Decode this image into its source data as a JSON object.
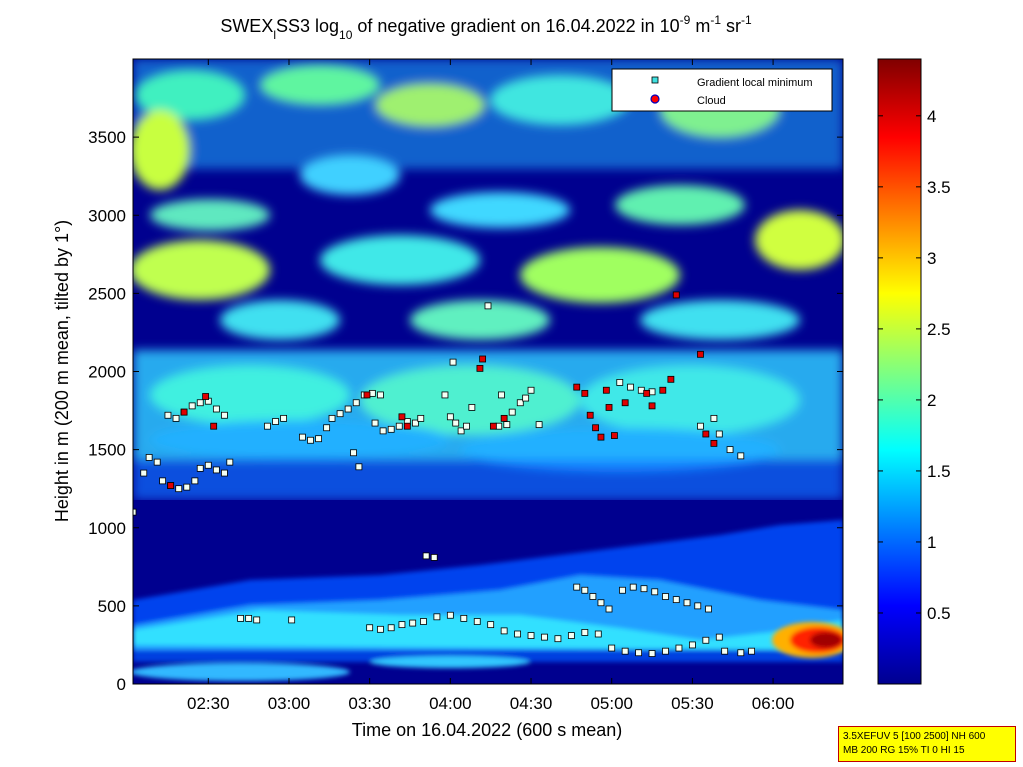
{
  "chart_data": {
    "type": "heatmap",
    "title": {
      "prefix": "SWEX",
      "sub1": "l",
      "mid": "SS3 log",
      "sub2": "10",
      "suffix": " of negative gradient on 16.04.2022 in 10",
      "sup1": "-9",
      "unit1": " m",
      "sup2": "-1",
      "unit2": " sr",
      "sup3": "-1"
    },
    "xlabel": "Time on 16.04.2022 (600 s mean)",
    "ylabel": "Height in m (200 m mean, tilted by 1°)",
    "x_ticks": [
      "02:30",
      "03:00",
      "03:30",
      "04:00",
      "04:30",
      "05:00",
      "05:30",
      "06:00"
    ],
    "x_tick_values": [
      150,
      180,
      210,
      240,
      270,
      300,
      330,
      360
    ],
    "xlim": [
      122,
      386
    ],
    "y_ticks": [
      "0",
      "500",
      "1000",
      "1500",
      "2000",
      "2500",
      "3000",
      "3500"
    ],
    "y_tick_values": [
      0,
      500,
      1000,
      1500,
      2000,
      2500,
      3000,
      3500
    ],
    "ylim": [
      0,
      4000
    ],
    "colorbar": {
      "ticks": [
        "0.5",
        "1",
        "1.5",
        "2",
        "2.5",
        "3",
        "3.5",
        "4"
      ],
      "tick_values": [
        0.5,
        1,
        1.5,
        2,
        2.5,
        3,
        3.5,
        4
      ],
      "range": [
        0,
        4.4
      ],
      "colormap": "jet"
    },
    "legend": {
      "position": "top-right",
      "entries": [
        {
          "label": "Gradient local minimum",
          "color": "#40e0e0",
          "marker": "square"
        },
        {
          "label": "Cloud",
          "color": "#ff0000",
          "marker": "circle"
        }
      ]
    },
    "series": [
      {
        "name": "Gradient local minimum",
        "points": [
          [
            122,
            1100
          ],
          [
            126,
            1350
          ],
          [
            128,
            1450
          ],
          [
            131,
            1420
          ],
          [
            133,
            1300
          ],
          [
            136,
            1270
          ],
          [
            139,
            1250
          ],
          [
            142,
            1260
          ],
          [
            145,
            1300
          ],
          [
            147,
            1380
          ],
          [
            150,
            1400
          ],
          [
            153,
            1370
          ],
          [
            156,
            1350
          ],
          [
            158,
            1420
          ],
          [
            135,
            1720
          ],
          [
            138,
            1700
          ],
          [
            141,
            1740
          ],
          [
            144,
            1780
          ],
          [
            147,
            1800
          ],
          [
            150,
            1810
          ],
          [
            153,
            1760
          ],
          [
            156,
            1720
          ],
          [
            162,
            420
          ],
          [
            165,
            420
          ],
          [
            168,
            410
          ],
          [
            172,
            1650
          ],
          [
            175,
            1680
          ],
          [
            178,
            1700
          ],
          [
            181,
            410
          ],
          [
            185,
            1580
          ],
          [
            188,
            1560
          ],
          [
            191,
            1570
          ],
          [
            194,
            1640
          ],
          [
            196,
            1700
          ],
          [
            199,
            1730
          ],
          [
            202,
            1760
          ],
          [
            205,
            1800
          ],
          [
            208,
            1850
          ],
          [
            211,
            1860
          ],
          [
            214,
            1850
          ],
          [
            204,
            1480
          ],
          [
            206,
            1390
          ],
          [
            212,
            1670
          ],
          [
            215,
            1620
          ],
          [
            218,
            1630
          ],
          [
            221,
            1650
          ],
          [
            224,
            1680
          ],
          [
            227,
            1670
          ],
          [
            229,
            1700
          ],
          [
            231,
            820
          ],
          [
            234,
            810
          ],
          [
            238,
            1850
          ],
          [
            240,
            1710
          ],
          [
            242,
            1670
          ],
          [
            244,
            1620
          ],
          [
            246,
            1650
          ],
          [
            248,
            1770
          ],
          [
            241,
            2060
          ],
          [
            258,
            1650
          ],
          [
            261,
            1660
          ],
          [
            263,
            1740
          ],
          [
            266,
            1800
          ],
          [
            268,
            1830
          ],
          [
            270,
            1880
          ],
          [
            273,
            1660
          ],
          [
            254,
            2420
          ],
          [
            259,
            1850
          ],
          [
            210,
            360
          ],
          [
            214,
            350
          ],
          [
            218,
            360
          ],
          [
            222,
            380
          ],
          [
            226,
            390
          ],
          [
            230,
            400
          ],
          [
            235,
            430
          ],
          [
            240,
            440
          ],
          [
            245,
            420
          ],
          [
            250,
            400
          ],
          [
            255,
            380
          ],
          [
            260,
            340
          ],
          [
            265,
            320
          ],
          [
            270,
            310
          ],
          [
            275,
            300
          ],
          [
            280,
            290
          ],
          [
            285,
            310
          ],
          [
            290,
            330
          ],
          [
            295,
            320
          ],
          [
            300,
            230
          ],
          [
            305,
            210
          ],
          [
            310,
            200
          ],
          [
            315,
            195
          ],
          [
            320,
            210
          ],
          [
            325,
            230
          ],
          [
            330,
            250
          ],
          [
            335,
            280
          ],
          [
            340,
            300
          ],
          [
            342,
            210
          ],
          [
            348,
            200
          ],
          [
            352,
            210
          ],
          [
            287,
            620
          ],
          [
            290,
            600
          ],
          [
            293,
            560
          ],
          [
            296,
            520
          ],
          [
            299,
            480
          ],
          [
            304,
            600
          ],
          [
            308,
            620
          ],
          [
            312,
            610
          ],
          [
            316,
            590
          ],
          [
            320,
            560
          ],
          [
            324,
            540
          ],
          [
            328,
            520
          ],
          [
            332,
            500
          ],
          [
            336,
            480
          ],
          [
            303,
            1930
          ],
          [
            307,
            1900
          ],
          [
            311,
            1880
          ],
          [
            315,
            1870
          ],
          [
            340,
            1600
          ],
          [
            344,
            1500
          ],
          [
            348,
            1460
          ],
          [
            338,
            1700
          ],
          [
            333,
            1650
          ]
        ]
      },
      {
        "name": "Cloud",
        "points": [
          [
            136,
            1270
          ],
          [
            141,
            1740
          ],
          [
            149,
            1840
          ],
          [
            152,
            1650
          ],
          [
            209,
            1850
          ],
          [
            222,
            1710
          ],
          [
            224,
            1650
          ],
          [
            251,
            2020
          ],
          [
            252,
            2080
          ],
          [
            256,
            1650
          ],
          [
            260,
            1700
          ],
          [
            287,
            1900
          ],
          [
            290,
            1860
          ],
          [
            292,
            1720
          ],
          [
            294,
            1640
          ],
          [
            296,
            1580
          ],
          [
            298,
            1880
          ],
          [
            299,
            1770
          ],
          [
            301,
            1590
          ],
          [
            305,
            1800
          ],
          [
            313,
            1860
          ],
          [
            315,
            1780
          ],
          [
            319,
            1880
          ],
          [
            322,
            1950
          ],
          [
            324,
            2490
          ],
          [
            333,
            2110
          ],
          [
            335,
            1600
          ],
          [
            338,
            1540
          ]
        ]
      }
    ]
  },
  "info_box": {
    "line1": "3.5XEFUV 5 [100 2500] NH 600",
    "line2": "MB 200 RG 15% TI 0 HI 15"
  },
  "legend_entries": [
    "Gradient local minimum",
    "Cloud"
  ]
}
